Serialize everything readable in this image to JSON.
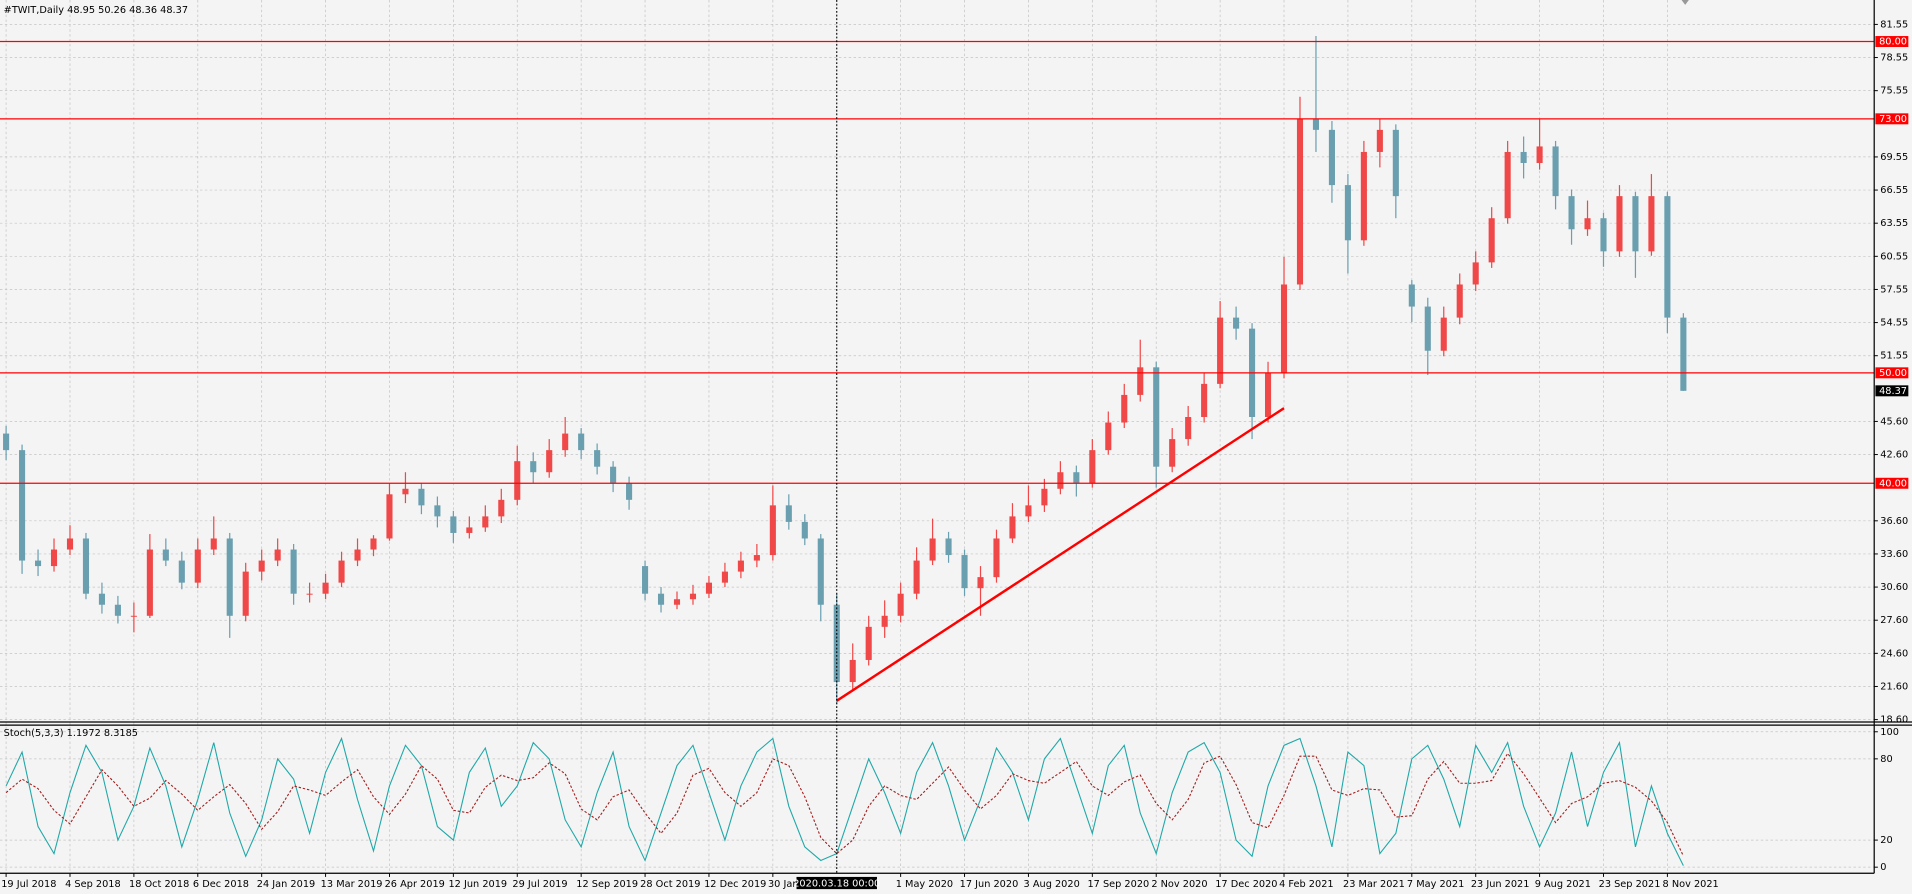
{
  "chart_data": {
    "type": "candlestick",
    "title": "#TWIT,Daily  48.95 50.26 48.36 48.37",
    "categories": [
      "19 Jul 2018",
      null,
      null,
      null,
      "4 Sep 2018",
      null,
      null,
      null,
      "18 Oct 2018",
      null,
      null,
      null,
      "6 Dec 2018",
      null,
      null,
      null,
      "24 Jan 2019",
      null,
      null,
      null,
      "13 Mar 2019",
      null,
      null,
      null,
      "26 Apr 2019",
      null,
      null,
      null,
      "12 Jun 2019",
      null,
      null,
      null,
      "29 Jul 2019",
      null,
      null,
      null,
      "12 Sep 2019",
      null,
      null,
      null,
      "28 Oct 2019",
      null,
      null,
      null,
      "12 Dec 2019",
      null,
      null,
      null,
      "30 Jan 2020",
      null,
      null,
      null,
      null,
      null,
      null,
      null,
      "1 May 2020",
      null,
      null,
      null,
      "17 Jun 2020",
      null,
      null,
      null,
      "3 Aug 2020",
      null,
      null,
      null,
      "17 Sep 2020",
      null,
      null,
      null,
      "2 Nov 2020",
      null,
      null,
      null,
      "17 Dec 2020",
      null,
      null,
      null,
      "4 Feb 2021",
      null,
      null,
      null,
      "23 Mar 2021",
      null,
      null,
      null,
      "7 May 2021",
      null,
      null,
      null,
      "23 Jun 2021",
      null,
      null,
      null,
      "9 Aug 2021",
      null,
      null,
      null,
      "23 Sep 2021",
      null,
      null,
      null,
      "8 Nov 2021",
      null
    ],
    "ohlc": [
      [
        44.5,
        45.2,
        42.1,
        43
      ],
      [
        43,
        43.5,
        31.8,
        33
      ],
      [
        33,
        34,
        31.6,
        32.5
      ],
      [
        32.5,
        35,
        32,
        34
      ],
      [
        34,
        36.2,
        33.5,
        35
      ],
      [
        35,
        35.5,
        29.5,
        30
      ],
      [
        30,
        31,
        28.2,
        29
      ],
      [
        29,
        29.8,
        27.3,
        28
      ],
      [
        28,
        29.2,
        26.5,
        28
      ],
      [
        28,
        35.4,
        27.8,
        34
      ],
      [
        34,
        35,
        32.5,
        33
      ],
      [
        33,
        33.8,
        30.4,
        31
      ],
      [
        31,
        35,
        30.5,
        34
      ],
      [
        34,
        37,
        33.5,
        35
      ],
      [
        35,
        35.5,
        26,
        28
      ],
      [
        28,
        32.8,
        27.5,
        32
      ],
      [
        32,
        34,
        31.2,
        33
      ],
      [
        33,
        35,
        32.5,
        34
      ],
      [
        34,
        34.5,
        29,
        30
      ],
      [
        30,
        31,
        29.2,
        30
      ],
      [
        30,
        31.8,
        29.5,
        31
      ],
      [
        31,
        33.8,
        30.6,
        33
      ],
      [
        33,
        35,
        32.5,
        34
      ],
      [
        34,
        35.3,
        33.4,
        35
      ],
      [
        35,
        40,
        34.8,
        39
      ],
      [
        39,
        41,
        38.2,
        39.5
      ],
      [
        39.5,
        40,
        37.2,
        38
      ],
      [
        38,
        38.8,
        36,
        37
      ],
      [
        37,
        37.5,
        34.6,
        35.5
      ],
      [
        35.5,
        37,
        35,
        36
      ],
      [
        36,
        38,
        35.6,
        37
      ],
      [
        37,
        39.5,
        36.4,
        38.5
      ],
      [
        38.5,
        43.4,
        38,
        42
      ],
      [
        42,
        42.8,
        40,
        41
      ],
      [
        41,
        44,
        40.5,
        43
      ],
      [
        43,
        46,
        42.4,
        44.5
      ],
      [
        44.5,
        45,
        42.2,
        43
      ],
      [
        43,
        43.6,
        40.8,
        41.5
      ],
      [
        41.5,
        42,
        39.2,
        40
      ],
      [
        40,
        40.6,
        37.6,
        38.5
      ],
      [
        32.5,
        33,
        29.4,
        30
      ],
      [
        30,
        30.6,
        28.3,
        29
      ],
      [
        29,
        30.2,
        28.6,
        29.5
      ],
      [
        29.5,
        30.8,
        29,
        30
      ],
      [
        30,
        31.6,
        29.6,
        31
      ],
      [
        31,
        32.8,
        30.6,
        32
      ],
      [
        32,
        33.8,
        31.4,
        33
      ],
      [
        33,
        34.5,
        32.4,
        33.5
      ],
      [
        33.5,
        39.8,
        33,
        38
      ],
      [
        38,
        39,
        35.8,
        36.5
      ],
      [
        36.5,
        37.2,
        34.4,
        35
      ],
      [
        35,
        35.4,
        27.5,
        29
      ],
      [
        29,
        30,
        20,
        22
      ],
      [
        22,
        25.5,
        21.3,
        24
      ],
      [
        24,
        28,
        23.5,
        27
      ],
      [
        27,
        29.4,
        26,
        28
      ],
      [
        28,
        31,
        27.4,
        30
      ],
      [
        30,
        34.2,
        29.5,
        33
      ],
      [
        33,
        36.8,
        32.6,
        35
      ],
      [
        35,
        35.6,
        32.8,
        33.5
      ],
      [
        33.5,
        34,
        29.8,
        30.5
      ],
      [
        30.5,
        32.5,
        28,
        31.5
      ],
      [
        31.5,
        35.8,
        31,
        35
      ],
      [
        35,
        38.2,
        34.6,
        37
      ],
      [
        37,
        39.8,
        36.5,
        38
      ],
      [
        38,
        40.4,
        37.4,
        39.5
      ],
      [
        39.5,
        42,
        39,
        41
      ],
      [
        41,
        41.6,
        38.8,
        40
      ],
      [
        40,
        44,
        39.6,
        43
      ],
      [
        43,
        46.5,
        42.6,
        45.5
      ],
      [
        45.5,
        49,
        45,
        48
      ],
      [
        48,
        53,
        47.4,
        50.5
      ],
      [
        50.5,
        51,
        39.6,
        41.5
      ],
      [
        41.5,
        45,
        41,
        44
      ],
      [
        44,
        47,
        43.4,
        46
      ],
      [
        46,
        50,
        45.5,
        49
      ],
      [
        49,
        56.5,
        48.6,
        55
      ],
      [
        55,
        56,
        53,
        54
      ],
      [
        54,
        54.5,
        44,
        46
      ],
      [
        46,
        51,
        45.5,
        50
      ],
      [
        50,
        60.5,
        49.5,
        58
      ],
      [
        58,
        75,
        57.5,
        73
      ],
      [
        73,
        80.5,
        70,
        72
      ],
      [
        72,
        72.8,
        65.4,
        67
      ],
      [
        67,
        68,
        59,
        62
      ],
      [
        62,
        71,
        61.5,
        70
      ],
      [
        70,
        73,
        68.6,
        72
      ],
      [
        72,
        72.5,
        64,
        66
      ],
      [
        58,
        58.4,
        54.6,
        56
      ],
      [
        56,
        56.8,
        49.8,
        52
      ],
      [
        52,
        56,
        51.5,
        55
      ],
      [
        55,
        59,
        54.4,
        58
      ],
      [
        58,
        61,
        57.4,
        60
      ],
      [
        60,
        65,
        59.5,
        64
      ],
      [
        64,
        71,
        63.5,
        70
      ],
      [
        70,
        71.4,
        67.6,
        69
      ],
      [
        69,
        73,
        68.4,
        70.5
      ],
      [
        70.5,
        71,
        64.8,
        66
      ],
      [
        66,
        66.6,
        61.6,
        63
      ],
      [
        63,
        65.6,
        62.4,
        64
      ],
      [
        64,
        64.5,
        59.6,
        61
      ],
      [
        61,
        67,
        60.5,
        66
      ],
      [
        66,
        66.4,
        58.6,
        61
      ],
      [
        61,
        68,
        60.6,
        66
      ],
      [
        66,
        66.4,
        53.6,
        55
      ],
      [
        55,
        55.4,
        48.36,
        48.37
      ]
    ],
    "up_color": "#f04848",
    "down_color": "#6a9fb0",
    "ylim": [
      18.49,
      83.76
    ],
    "yticks": [
      81.55,
      78.55,
      75.55,
      69.55,
      66.55,
      63.55,
      60.55,
      57.55,
      54.55,
      51.55,
      {
        "value": 45.6,
        "label": "45.60"
      },
      {
        "value": 42.6,
        "label": "42.60"
      },
      {
        "value": 36.6,
        "label": "36.60"
      },
      {
        "value": 33.6,
        "label": "33.60"
      },
      {
        "value": 30.6,
        "label": "30.60"
      },
      {
        "value": 27.6,
        "label": "27.60"
      },
      {
        "value": 24.6,
        "label": "24.60"
      },
      {
        "value": 21.6,
        "label": "21.60"
      },
      {
        "value": 18.6,
        "label": "18.60"
      }
    ],
    "grid": true,
    "levels": [
      {
        "value": 80,
        "label": "80.00"
      },
      {
        "value": 73,
        "label": "73.00"
      },
      {
        "value": 50,
        "label": "50.00"
      },
      {
        "value": 40,
        "label": "40.00"
      }
    ],
    "level_color": "#ff0000",
    "last_price": 48.37,
    "trendline": {
      "x": [
        52,
        80
      ],
      "values": [
        20.3,
        46.8
      ],
      "color": "#ff0000"
    },
    "cursor": {
      "x": 52,
      "label": "2020.03.18 00:00"
    },
    "stochastic": {
      "title": "Stoch(5,3,3) 1.1972 8.3185",
      "ylim": [
        -4.5,
        105.4
      ],
      "yticks": [
        100,
        80,
        20,
        0
      ],
      "series": [
        {
          "color": "#20a8a8",
          "dash": false,
          "values": [
            60,
            85,
            30,
            10,
            55,
            90,
            70,
            20,
            45,
            88,
            60,
            15,
            50,
            92,
            40,
            8,
            35,
            80,
            65,
            25,
            70,
            95,
            50,
            12,
            60,
            90,
            75,
            30,
            20,
            70,
            88,
            45,
            60,
            92,
            80,
            35,
            15,
            55,
            85,
            30,
            5,
            40,
            75,
            90,
            55,
            20,
            60,
            85,
            95,
            45,
            15,
            5,
            10,
            45,
            80,
            55,
            25,
            70,
            92,
            60,
            20,
            50,
            88,
            70,
            35,
            80,
            95,
            60,
            25,
            75,
            90,
            40,
            10,
            55,
            85,
            92,
            70,
            20,
            8,
            60,
            90,
            95,
            60,
            15,
            85,
            75,
            10,
            25,
            80,
            90,
            65,
            30,
            90,
            70,
            92,
            45,
            15,
            40,
            85,
            30,
            70,
            92,
            15,
            60,
            25,
            1.1972
          ]
        },
        {
          "color": "#a02020",
          "dash": true,
          "values": [
            55,
            65,
            58,
            42,
            32,
            52,
            72,
            60,
            45,
            51,
            64,
            54,
            42,
            52,
            61,
            47,
            28,
            41,
            60,
            57,
            53,
            63,
            72,
            52,
            39,
            54,
            75,
            65,
            42,
            40,
            59,
            68,
            64,
            66,
            77,
            69,
            43,
            35,
            52,
            57,
            40,
            25,
            40,
            68,
            73,
            55,
            45,
            55,
            80,
            75,
            52,
            22,
            10,
            20,
            45,
            60,
            53,
            50,
            62,
            74,
            57,
            43,
            53,
            69,
            64,
            62,
            70,
            78,
            60,
            53,
            63,
            68,
            47,
            35,
            50,
            77,
            82,
            61,
            33,
            29,
            53,
            82,
            82,
            57,
            53,
            58,
            57,
            37,
            38,
            65,
            78,
            62,
            62,
            64,
            84,
            69,
            51,
            33,
            47,
            52,
            62,
            64,
            59,
            49,
            33,
            8.3185
          ]
        }
      ]
    }
  }
}
